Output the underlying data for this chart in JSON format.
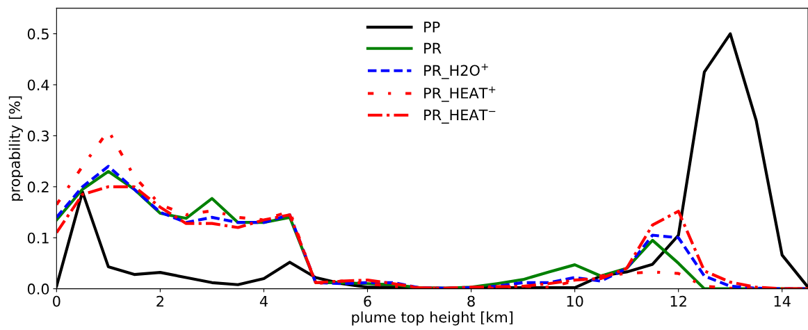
{
  "chart_data": {
    "type": "line",
    "xlabel": "plume top height [km]",
    "ylabel": "propability [%]",
    "x": [
      0,
      0.5,
      1,
      1.5,
      2,
      2.5,
      3,
      3.5,
      4,
      4.5,
      5,
      5.5,
      6,
      6.5,
      7,
      7.5,
      8,
      8.5,
      9,
      9.5,
      10,
      10.5,
      11,
      11.5,
      12,
      12.5,
      13,
      13.5,
      14,
      14.5
    ],
    "series": [
      {
        "name": "PP",
        "color": "#000000",
        "line_style": "solid",
        "values": [
          0.005,
          0.19,
          0.043,
          0.028,
          0.032,
          0.022,
          0.012,
          0.008,
          0.02,
          0.052,
          0.022,
          0.01,
          0.003,
          0.003,
          0.001,
          0.001,
          0.002,
          0.002,
          0.002,
          0.002,
          0.002,
          0.025,
          0.033,
          0.048,
          0.105,
          0.425,
          0.5,
          0.33,
          0.066,
          0.003
        ]
      },
      {
        "name": "PR",
        "color": "#008000",
        "line_style": "solid",
        "values": [
          0.135,
          0.195,
          0.23,
          0.195,
          0.148,
          0.138,
          0.177,
          0.13,
          0.13,
          0.14,
          0.012,
          0.012,
          0.01,
          0.008,
          0.002,
          0.001,
          0.003,
          0.01,
          0.018,
          0.033,
          0.047,
          0.025,
          0.04,
          0.095,
          0.05,
          0.0,
          0.0,
          0.0,
          0.0,
          0.0
        ]
      },
      {
        "name": "PR_H2O$^{+}$",
        "color": "#0000ff",
        "line_style": "dashed",
        "values": [
          0.14,
          0.2,
          0.24,
          0.195,
          0.15,
          0.13,
          0.14,
          0.13,
          0.13,
          0.145,
          0.012,
          0.01,
          0.012,
          0.012,
          0.002,
          0.001,
          0.002,
          0.005,
          0.012,
          0.012,
          0.022,
          0.015,
          0.04,
          0.105,
          0.1,
          0.025,
          0.005,
          0.001,
          0.0,
          0.0
        ]
      },
      {
        "name": "PR_HEAT$^{+}$",
        "color": "#ff0000",
        "line_style": "loose dashdot",
        "values": [
          0.165,
          0.24,
          0.31,
          0.22,
          0.165,
          0.145,
          0.153,
          0.14,
          0.135,
          0.152,
          0.01,
          0.015,
          0.01,
          0.005,
          0.002,
          0.001,
          0.001,
          0.001,
          0.005,
          0.003,
          0.015,
          0.025,
          0.03,
          0.033,
          0.03,
          0.005,
          0.001,
          0.0,
          0.0,
          0.0
        ]
      },
      {
        "name": "PR_HEAT$^{−}$",
        "color": "#ff0000",
        "line_style": "dashdot",
        "values": [
          0.11,
          0.185,
          0.2,
          0.2,
          0.16,
          0.128,
          0.128,
          0.12,
          0.135,
          0.145,
          0.012,
          0.015,
          0.017,
          0.01,
          0.002,
          0.001,
          0.003,
          0.004,
          0.005,
          0.01,
          0.017,
          0.02,
          0.04,
          0.125,
          0.152,
          0.035,
          0.013,
          0.003,
          0.0,
          0.0
        ]
      }
    ],
    "xlim": [
      0,
      14.5
    ],
    "xticks": [
      0,
      2,
      4,
      6,
      8,
      10,
      12,
      14
    ],
    "ylim": [
      0,
      0.55
    ],
    "yticks": [
      {
        "value": 0,
        "label": "0.0"
      },
      0.1,
      0.2,
      0.3,
      0.4,
      0.5
    ],
    "legend": "top",
    "grid": false
  }
}
